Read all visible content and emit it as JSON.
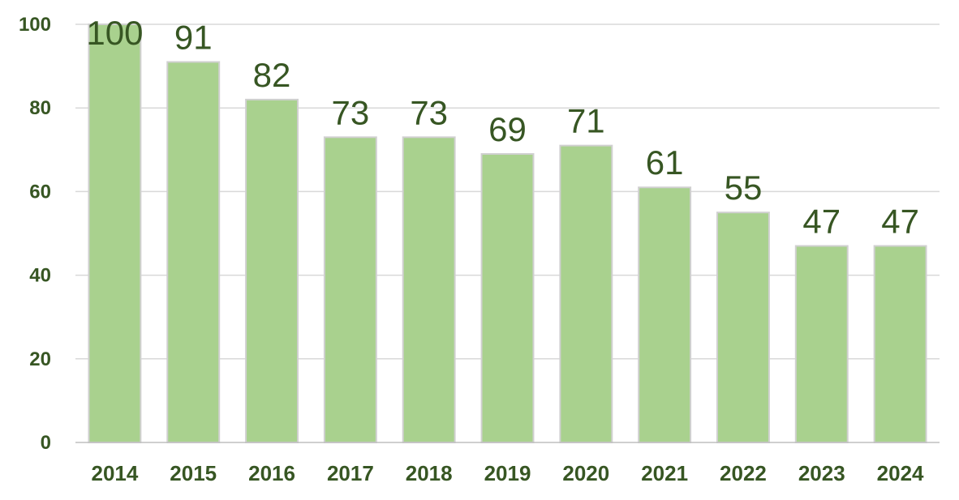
{
  "chart_data": {
    "type": "bar",
    "title": "",
    "xlabel": "",
    "ylabel": "",
    "categories": [
      "2014",
      "2015",
      "2016",
      "2017",
      "2018",
      "2019",
      "2020",
      "2021",
      "2022",
      "2023",
      "2024"
    ],
    "values": [
      100,
      91,
      82,
      73,
      73,
      69,
      71,
      61,
      55,
      47,
      47
    ],
    "data_labels": [
      "100",
      "91",
      "82",
      "73",
      "73",
      "69",
      "71",
      "61",
      "55",
      "47",
      "47"
    ],
    "ylim": [
      0,
      100
    ],
    "yticks": [
      "0",
      "20",
      "40",
      "60",
      "80",
      "100"
    ],
    "grid": true,
    "legend": "none",
    "colors": {
      "bar_fill": "#a9d18e",
      "bar_border": "#d0d0d0",
      "text": "#375623",
      "grid": "#d9d9d9"
    }
  }
}
